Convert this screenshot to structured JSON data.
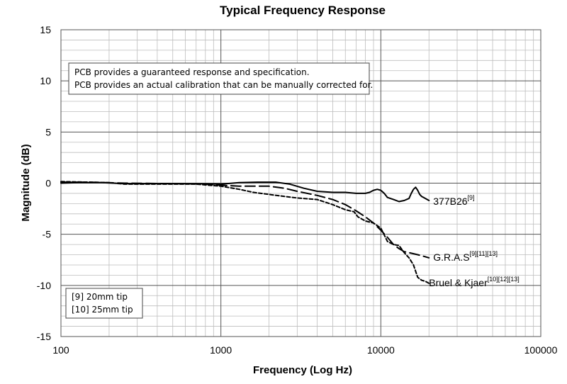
{
  "chart_data": {
    "type": "line",
    "title": "Typical Frequency Response",
    "xlabel": "Frequency (Log Hz)",
    "ylabel": "Magnitude (dB)",
    "xscale": "log",
    "xlim": [
      100,
      100000
    ],
    "ylim": [
      -15,
      15
    ],
    "x_ticks": [
      "100",
      "1000",
      "10000",
      "100000"
    ],
    "y_ticks": [
      "15",
      "10",
      "5",
      "0",
      "-5",
      "-10",
      "-15"
    ],
    "grid": true,
    "series": [
      {
        "name": "377B26",
        "name_sup": "[9]",
        "style": "solid",
        "points": [
          [
            100,
            0
          ],
          [
            130,
            0.05
          ],
          [
            180,
            0.05
          ],
          [
            250,
            -0.05
          ],
          [
            400,
            -0.05
          ],
          [
            700,
            -0.05
          ],
          [
            1000,
            -0.1
          ],
          [
            1300,
            0.05
          ],
          [
            1700,
            0.1
          ],
          [
            2200,
            0.1
          ],
          [
            2700,
            -0.1
          ],
          [
            3300,
            -0.5
          ],
          [
            4000,
            -0.8
          ],
          [
            5000,
            -0.9
          ],
          [
            6000,
            -0.9
          ],
          [
            7000,
            -1.0
          ],
          [
            8000,
            -1.0
          ],
          [
            8500,
            -0.9
          ],
          [
            9000,
            -0.7
          ],
          [
            9500,
            -0.6
          ],
          [
            10000,
            -0.7
          ],
          [
            10500,
            -1.0
          ],
          [
            11000,
            -1.4
          ],
          [
            12000,
            -1.6
          ],
          [
            13000,
            -1.8
          ],
          [
            14000,
            -1.7
          ],
          [
            15000,
            -1.5
          ],
          [
            15500,
            -1.0
          ],
          [
            16000,
            -0.6
          ],
          [
            16500,
            -0.4
          ],
          [
            17000,
            -0.7
          ],
          [
            17500,
            -1.1
          ],
          [
            18000,
            -1.3
          ],
          [
            19000,
            -1.5
          ],
          [
            20000,
            -1.7
          ]
        ]
      },
      {
        "name": "G.R.A.S",
        "name_sup": "[9][11][13]",
        "style": "long-dash",
        "points": [
          [
            100,
            0.1
          ],
          [
            150,
            0.1
          ],
          [
            250,
            0
          ],
          [
            500,
            -0.05
          ],
          [
            800,
            -0.1
          ],
          [
            1000,
            -0.2
          ],
          [
            1300,
            -0.3
          ],
          [
            1600,
            -0.3
          ],
          [
            2000,
            -0.3
          ],
          [
            2500,
            -0.5
          ],
          [
            3000,
            -0.8
          ],
          [
            4000,
            -1.2
          ],
          [
            5000,
            -1.6
          ],
          [
            6000,
            -2.1
          ],
          [
            7000,
            -2.7
          ],
          [
            8000,
            -3.3
          ],
          [
            9000,
            -3.9
          ],
          [
            10000,
            -4.6
          ],
          [
            11000,
            -5.3
          ],
          [
            12000,
            -6.0
          ],
          [
            13000,
            -6.4
          ],
          [
            14000,
            -6.7
          ],
          [
            15000,
            -6.8
          ],
          [
            16000,
            -6.9
          ],
          [
            17000,
            -7.0
          ],
          [
            18000,
            -7.1
          ],
          [
            19000,
            -7.2
          ],
          [
            20000,
            -7.3
          ]
        ]
      },
      {
        "name": "Bruel & Kjaer",
        "name_sup": "[10][12][13]",
        "style": "short-dash",
        "points": [
          [
            100,
            0.15
          ],
          [
            150,
            0.1
          ],
          [
            200,
            0.05
          ],
          [
            250,
            -0.1
          ],
          [
            400,
            -0.1
          ],
          [
            700,
            -0.1
          ],
          [
            1000,
            -0.3
          ],
          [
            1300,
            -0.6
          ],
          [
            1600,
            -0.9
          ],
          [
            2000,
            -1.1
          ],
          [
            2500,
            -1.3
          ],
          [
            3000,
            -1.45
          ],
          [
            4000,
            -1.6
          ],
          [
            5000,
            -2.1
          ],
          [
            6000,
            -2.6
          ],
          [
            6800,
            -2.8
          ],
          [
            7200,
            -3.3
          ],
          [
            8000,
            -3.7
          ],
          [
            9000,
            -3.9
          ],
          [
            10000,
            -4.4
          ],
          [
            11000,
            -5.7
          ],
          [
            12000,
            -6.0
          ],
          [
            13000,
            -6.1
          ],
          [
            14000,
            -6.8
          ],
          [
            15000,
            -7.3
          ],
          [
            16000,
            -8.0
          ],
          [
            17000,
            -9.2
          ],
          [
            18000,
            -9.5
          ],
          [
            19000,
            -9.6
          ],
          [
            20000,
            -9.8
          ]
        ]
      }
    ],
    "annotations": {
      "note_lines": [
        "PCB provides a guaranteed response and specification.",
        "PCB provides an actual calibration that can be manually corrected for."
      ],
      "legend_lines": [
        "[9] 20mm tip",
        "[10] 25mm tip"
      ]
    }
  }
}
